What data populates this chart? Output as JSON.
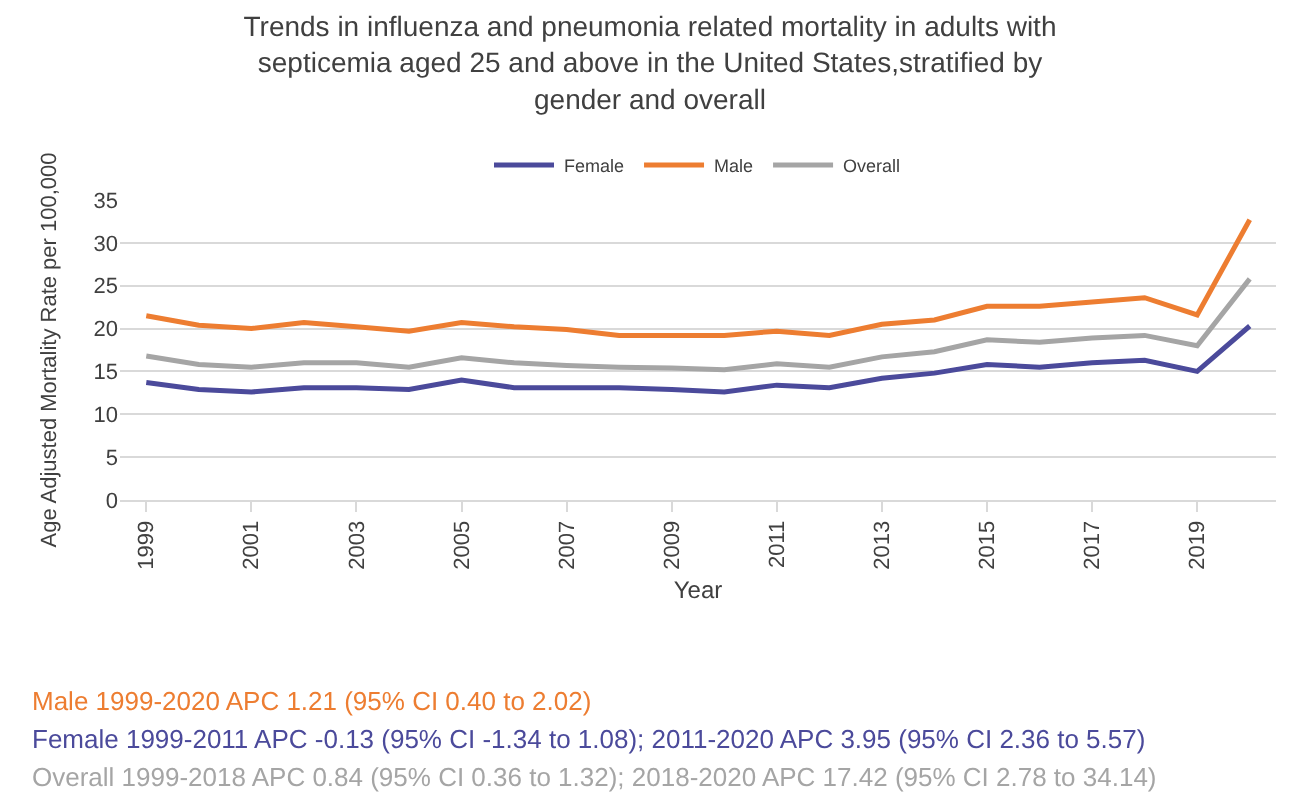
{
  "chart_data": {
    "type": "line",
    "title": "Trends in influenza and pneumonia related mortality in adults with septicemia aged 25 and above in the United States,stratified by gender and overall",
    "xlabel": "Year",
    "ylabel": "Age Adjusted Mortality Rate per 100,000",
    "categories": [
      "1999",
      null,
      "2001",
      null,
      "2003",
      null,
      "2005",
      null,
      "2007",
      null,
      "2009",
      null,
      "2011",
      null,
      "2013",
      null,
      "2015",
      null,
      "2017",
      null,
      "2019",
      null
    ],
    "series": [
      {
        "name": "Female",
        "color": "#4b4a9b",
        "values": [
          13.7,
          12.9,
          12.6,
          13.1,
          13.1,
          12.9,
          14.0,
          13.1,
          13.1,
          13.1,
          12.9,
          12.6,
          13.4,
          13.1,
          14.2,
          14.8,
          15.8,
          15.5,
          16.0,
          16.3,
          15.0,
          20.3
        ]
      },
      {
        "name": "Male",
        "color": "#ed7d31",
        "values": [
          21.5,
          20.4,
          20.0,
          20.7,
          20.2,
          19.7,
          20.7,
          20.2,
          19.9,
          19.2,
          19.2,
          19.2,
          19.7,
          19.2,
          20.5,
          21.0,
          22.6,
          22.6,
          23.1,
          23.6,
          21.6,
          32.7
        ]
      },
      {
        "name": "Overall",
        "color": "#a5a5a5",
        "values": [
          16.8,
          15.8,
          15.5,
          16.0,
          16.0,
          15.5,
          16.6,
          16.0,
          15.7,
          15.5,
          15.4,
          15.2,
          15.9,
          15.5,
          16.7,
          17.3,
          18.7,
          18.4,
          18.9,
          19.2,
          18.0,
          25.8
        ]
      }
    ],
    "ylim": [
      0,
      35
    ],
    "yticks": [
      0,
      5,
      10,
      15,
      20,
      25,
      30,
      35
    ],
    "grid": "y",
    "legend": "top",
    "marker": "none",
    "line_style": "solid",
    "annotations": [
      "Male 1999-2020 APC 1.21 (95% CI 0.40 to 2.02)",
      "Female 1999-2011 APC -0.13 (95% CI -1.34 to 1.08); 2011-2020 APC 3.95 (95% CI 2.36 to 5.57)",
      "Overall 1999-2018 APC 0.84 (95% CI 0.36 to 1.32); 2018-2020 APC 17.42 (95% CI 2.78 to 34.14)"
    ]
  }
}
